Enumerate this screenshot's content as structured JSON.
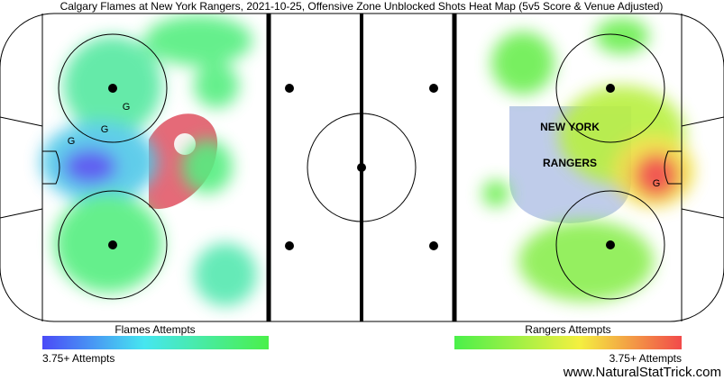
{
  "header": {
    "title": "Calgary Flames at New York Rangers, 2021-10-25, Offensive Zone Unblocked Shots Heat Map (5v5 Score & Venue Adjusted)"
  },
  "rink": {
    "goal_markers_left": [
      "G",
      "G",
      "G"
    ],
    "goal_markers_right": [
      "G"
    ],
    "logo_right": [
      "NEW YORK",
      "RANGERS"
    ]
  },
  "legend": {
    "left": {
      "title": "Flames Attempts",
      "note": "3.75+ Attempts"
    },
    "right": {
      "title": "Rangers Attempts",
      "note": "3.75+ Attempts"
    }
  },
  "footer": {
    "watermark": "www.NaturalStatTrick.com"
  }
}
